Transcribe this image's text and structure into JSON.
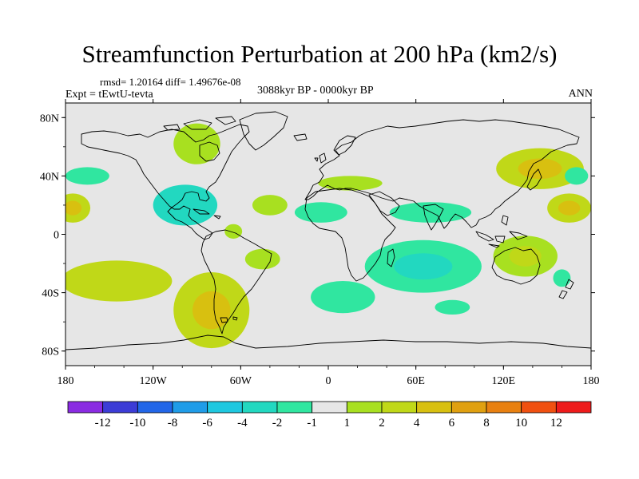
{
  "title": "Streamfunction Perturbation at 200 hPa (km2/s)",
  "stats_line": "rmsd= 1.20164 diff= 1.49676e-08",
  "experiment_line": "Expt = tEwtU-tevta",
  "period_line": "3088kyr BP - 0000kyr BP",
  "season": "ANN",
  "lat_ticks": [
    {
      "lat": 80,
      "label": "80N"
    },
    {
      "lat": 40,
      "label": "40N"
    },
    {
      "lat": 0,
      "label": "0"
    },
    {
      "lat": -40,
      "label": "40S"
    },
    {
      "lat": -80,
      "label": "80S"
    }
  ],
  "lon_ticks": [
    {
      "lon": -180,
      "label": "180"
    },
    {
      "lon": -120,
      "label": "120W"
    },
    {
      "lon": -60,
      "label": "60W"
    },
    {
      "lon": 0,
      "label": "0"
    },
    {
      "lon": 60,
      "label": "60E"
    },
    {
      "lon": 120,
      "label": "120E"
    },
    {
      "lon": 180,
      "label": "180"
    }
  ],
  "colorbar": {
    "colors": [
      "#8a2be2",
      "#3c3cd6",
      "#2266e8",
      "#1f9ce8",
      "#1ec8e0",
      "#22d8c0",
      "#30e6a0",
      "#e6e6e6",
      "#a8e020",
      "#c0d818",
      "#d8c010",
      "#e0a010",
      "#e88010",
      "#f05010",
      "#ee1a1a"
    ],
    "labels": [
      "-12",
      "-10",
      "-8",
      "-6",
      "-4",
      "-2",
      "-1",
      "1",
      "2",
      "4",
      "6",
      "8",
      "10",
      "12"
    ]
  },
  "colors": {
    "land_outline": "#000000",
    "background": "#e6e6e6"
  },
  "chart_data": {
    "type": "heatmap",
    "title": "Streamfunction Perturbation at 200 hPa (km2/s)",
    "projection": "cylindrical equidistant",
    "lon_range": [
      -180,
      180
    ],
    "lat_range": [
      -90,
      90
    ],
    "units": "km2/s",
    "contour_levels": [
      -12,
      -10,
      -8,
      -6,
      -4,
      -2,
      -1,
      1,
      2,
      4,
      6,
      8,
      10,
      12
    ],
    "anomalies": [
      {
        "lon": 145,
        "lat": 45,
        "rx": 30,
        "ry": 14,
        "value": 3.5,
        "core": 5
      },
      {
        "lon": 165,
        "lat": 18,
        "rx": 15,
        "ry": 10,
        "value": 2.5,
        "core": 4
      },
      {
        "lon": -175,
        "lat": 18,
        "rx": 12,
        "ry": 10,
        "value": 2.5,
        "core": 4
      },
      {
        "lon": -165,
        "lat": 40,
        "rx": 15,
        "ry": 6,
        "value": -2
      },
      {
        "lon": -98,
        "lat": 20,
        "rx": 22,
        "ry": 14,
        "value": -2.5,
        "core": -3
      },
      {
        "lon": -90,
        "lat": 62,
        "rx": 16,
        "ry": 14,
        "value": 1.5
      },
      {
        "lon": -40,
        "lat": 20,
        "rx": 12,
        "ry": 7,
        "value": 1.5
      },
      {
        "lon": -65,
        "lat": 2,
        "rx": 6,
        "ry": 5,
        "value": 1.5
      },
      {
        "lon": -145,
        "lat": -32,
        "rx": 38,
        "ry": 14,
        "value": 2,
        "core": 3
      },
      {
        "lon": -80,
        "lat": -52,
        "rx": 26,
        "ry": 26,
        "value": 2.5,
        "core": 4
      },
      {
        "lon": -45,
        "lat": -17,
        "rx": 12,
        "ry": 7,
        "value": 1.5
      },
      {
        "lon": 15,
        "lat": 35,
        "rx": 22,
        "ry": 5,
        "value": 1.5
      },
      {
        "lon": -5,
        "lat": 15,
        "rx": 18,
        "ry": 7,
        "value": -1.5
      },
      {
        "lon": 10,
        "lat": -43,
        "rx": 22,
        "ry": 11,
        "value": -1.5
      },
      {
        "lon": 65,
        "lat": -22,
        "rx": 40,
        "ry": 18,
        "value": -2,
        "core": -3
      },
      {
        "lon": 85,
        "lat": -50,
        "rx": 12,
        "ry": 5,
        "value": -1.5
      },
      {
        "lon": 70,
        "lat": 15,
        "rx": 28,
        "ry": 7,
        "value": -1.5
      },
      {
        "lon": 135,
        "lat": -15,
        "rx": 22,
        "ry": 14,
        "value": 1.5,
        "core": 2.5
      },
      {
        "lon": 170,
        "lat": 40,
        "rx": 8,
        "ry": 6,
        "value": -1.5
      },
      {
        "lon": 160,
        "lat": -30,
        "rx": 6,
        "ry": 6,
        "value": -1.5
      }
    ]
  }
}
